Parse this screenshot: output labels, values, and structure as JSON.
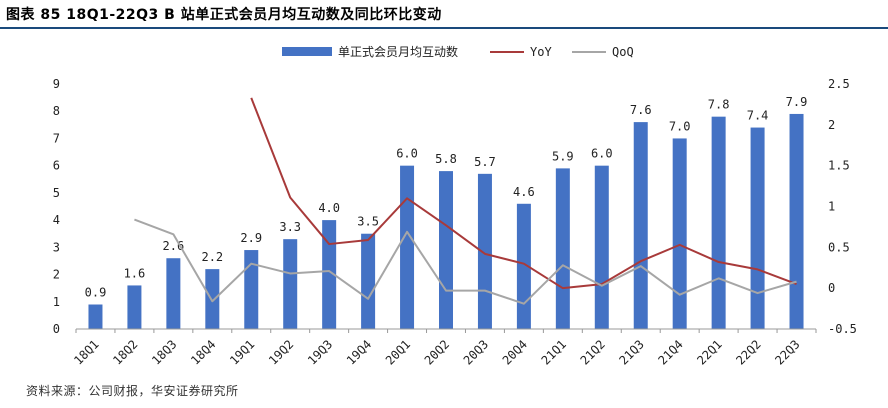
{
  "title": "图表 85 18Q1-22Q3 B 站单正式会员月均互动数及同比环比变动",
  "source": "资料来源：公司财报，华安证券研究所",
  "chart_data": {
    "type": "bar",
    "categories": [
      "18Q1",
      "18Q2",
      "18Q3",
      "18Q4",
      "19Q1",
      "19Q2",
      "19Q3",
      "19Q4",
      "20Q1",
      "20Q2",
      "20Q3",
      "20Q4",
      "21Q1",
      "21Q2",
      "21Q3",
      "21Q4",
      "22Q1",
      "22Q2",
      "22Q3"
    ],
    "series": [
      {
        "name": "单正式会员月均互动数",
        "type": "bar",
        "axis": "left",
        "color": "#4472c4",
        "values": [
          0.9,
          1.6,
          2.6,
          2.2,
          2.9,
          3.3,
          4.0,
          3.5,
          6.0,
          5.8,
          5.7,
          4.6,
          5.9,
          6.0,
          7.6,
          7.0,
          7.8,
          7.4,
          7.9
        ],
        "labels": [
          "0.9",
          "1.6",
          "2.6",
          "2.2",
          "2.9",
          "3.3",
          "4.0",
          "3.5",
          "6.0",
          "5.8",
          "5.7",
          "4.6",
          "5.9",
          "6.0",
          "7.6",
          "7.0",
          "7.8",
          "7.4",
          "7.9"
        ]
      },
      {
        "name": "YoY",
        "type": "line",
        "axis": "right",
        "color": "#a83a3a",
        "values": [
          null,
          null,
          null,
          null,
          2.33,
          1.11,
          0.54,
          0.59,
          1.1,
          0.77,
          0.42,
          0.3,
          0.0,
          0.05,
          0.33,
          0.53,
          0.32,
          0.23,
          0.05
        ]
      },
      {
        "name": "QoQ",
        "type": "line",
        "axis": "right",
        "color": "#a6a6a6",
        "values": [
          null,
          0.84,
          0.66,
          -0.16,
          0.3,
          0.18,
          0.21,
          -0.13,
          0.69,
          -0.03,
          -0.03,
          -0.19,
          0.28,
          0.03,
          0.27,
          -0.08,
          0.12,
          -0.06,
          0.08
        ]
      }
    ],
    "y_left": {
      "min": 0,
      "max": 9,
      "ticks": [
        "0",
        "1",
        "2",
        "3",
        "4",
        "5",
        "6",
        "7",
        "8",
        "9"
      ]
    },
    "y_right": {
      "min": -0.5,
      "max": 2.5,
      "ticks": [
        "-0.5",
        "0",
        "0.5",
        "1",
        "1.5",
        "2",
        "2.5"
      ]
    },
    "legend": {
      "position": "top"
    },
    "grid": false
  }
}
